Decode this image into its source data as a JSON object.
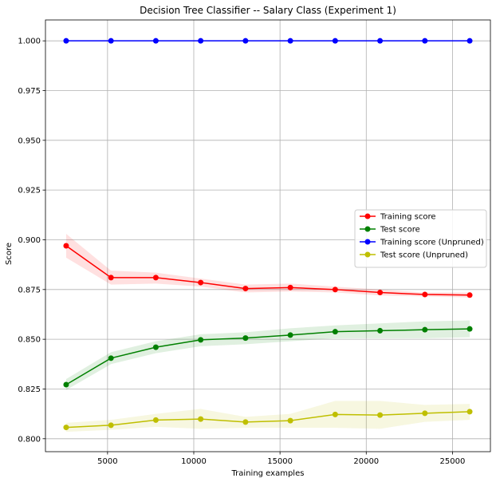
{
  "chart_data": {
    "type": "line",
    "title": "Decision Tree Classifier -- Salary Class (Experiment 1)",
    "xlabel": "Training examples",
    "ylabel": "Score",
    "xlim": [
      1400,
      27200
    ],
    "ylim": [
      0.7935,
      1.0105
    ],
    "xticks": [
      5000,
      10000,
      15000,
      20000,
      25000
    ],
    "yticks": [
      0.8,
      0.825,
      0.85,
      0.875,
      0.9,
      0.925,
      0.95,
      0.975,
      1.0
    ],
    "yticklabels": [
      "0.800",
      "0.825",
      "0.850",
      "0.875",
      "0.900",
      "0.925",
      "0.950",
      "0.975",
      "1.000"
    ],
    "grid": true,
    "legend_position": "center-right",
    "x": [
      2600,
      5200,
      7800,
      10400,
      13000,
      15600,
      18200,
      20800,
      23400,
      26000
    ],
    "series": [
      {
        "name": "Training score",
        "color": "#ff0000",
        "values": [
          0.897,
          0.881,
          0.881,
          0.8785,
          0.8755,
          0.876,
          0.875,
          0.8735,
          0.8725,
          0.8722
        ],
        "lower": [
          0.891,
          0.8775,
          0.878,
          0.8765,
          0.8735,
          0.874,
          0.8735,
          0.872,
          0.8715,
          0.871
        ],
        "upper": [
          0.903,
          0.8845,
          0.8835,
          0.8805,
          0.8775,
          0.878,
          0.8765,
          0.875,
          0.8735,
          0.8735
        ]
      },
      {
        "name": "Test score",
        "color": "#008000",
        "values": [
          0.8272,
          0.8405,
          0.846,
          0.8497,
          0.8506,
          0.8521,
          0.8538,
          0.8543,
          0.8548,
          0.8552
        ],
        "lower": [
          0.8245,
          0.8375,
          0.843,
          0.8465,
          0.8475,
          0.849,
          0.8505,
          0.8505,
          0.8505,
          0.851
        ],
        "upper": [
          0.83,
          0.8435,
          0.849,
          0.8525,
          0.8535,
          0.8555,
          0.857,
          0.858,
          0.859,
          0.8595
        ]
      },
      {
        "name": "Training score (Unpruned)",
        "color": "#0000ff",
        "values": [
          1.0,
          1.0,
          1.0,
          1.0,
          1.0,
          1.0,
          1.0,
          1.0,
          1.0,
          1.0
        ],
        "lower": [
          1.0,
          1.0,
          1.0,
          1.0,
          1.0,
          1.0,
          1.0,
          1.0,
          1.0,
          1.0
        ],
        "upper": [
          1.0,
          1.0,
          1.0,
          1.0,
          1.0,
          1.0,
          1.0,
          1.0,
          1.0,
          1.0
        ]
      },
      {
        "name": "Test score (Unpruned)",
        "color": "#bfbf00",
        "values": [
          0.8057,
          0.8068,
          0.8094,
          0.8099,
          0.8084,
          0.8091,
          0.8122,
          0.8119,
          0.8128,
          0.8136
        ],
        "lower": [
          0.8035,
          0.8045,
          0.806,
          0.805,
          0.8055,
          0.8055,
          0.8055,
          0.805,
          0.8085,
          0.8095
        ],
        "upper": [
          0.808,
          0.8095,
          0.8125,
          0.815,
          0.811,
          0.8125,
          0.819,
          0.819,
          0.817,
          0.8175
        ]
      }
    ]
  }
}
